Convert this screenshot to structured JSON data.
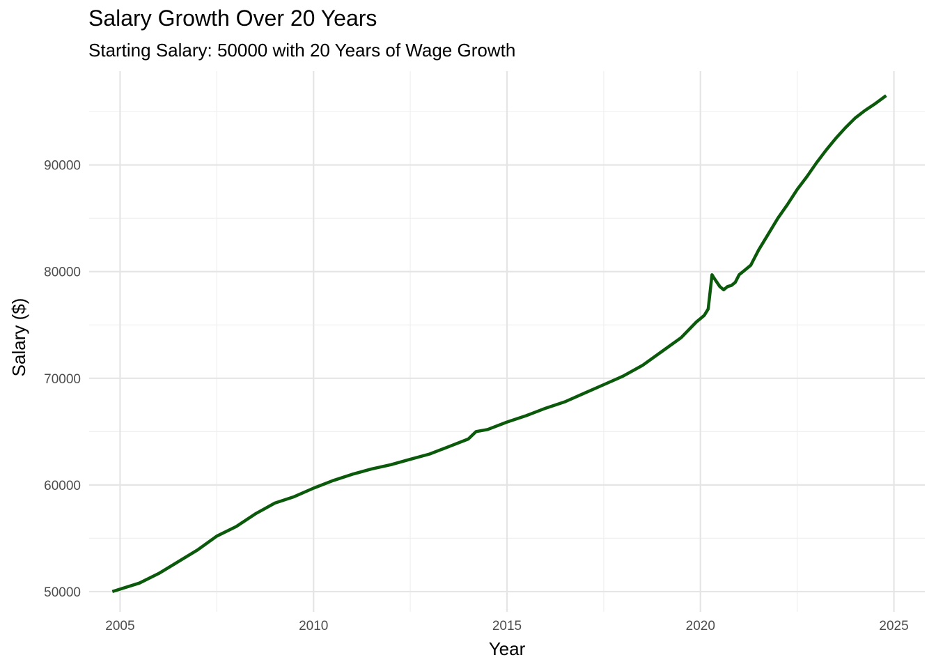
{
  "chart_data": {
    "type": "line",
    "title": "Salary Growth Over 20 Years",
    "subtitle": "Starting Salary: 50000 with 20 Years of Wage Growth",
    "xlabel": "Year",
    "ylabel": "Salary ($)",
    "x_ticks": [
      "2005",
      "2010",
      "2015",
      "2020",
      "2025"
    ],
    "y_ticks": [
      "50000",
      "60000",
      "70000",
      "80000",
      "90000"
    ],
    "xlim": [
      2004.2,
      2025.8
    ],
    "ylim": [
      48100,
      98800
    ],
    "grid": true,
    "line_color": "#0b5a0b",
    "series": [
      {
        "x": [
          2004.8,
          2005.5,
          2006.0,
          2006.5,
          2007.0,
          2007.5,
          2008.0,
          2008.5,
          2009.0,
          2009.5,
          2010.0,
          2010.5,
          2011.0,
          2011.5,
          2012.0,
          2012.5,
          2013.0,
          2013.5,
          2014.0,
          2014.2,
          2014.5,
          2015.0,
          2015.5,
          2016.0,
          2016.5,
          2017.0,
          2017.5,
          2018.0,
          2018.5,
          2019.0,
          2019.5,
          2019.9,
          2020.0,
          2020.1,
          2020.2,
          2020.3,
          2020.35,
          2020.5,
          2020.6,
          2020.7,
          2020.8,
          2020.9,
          2021.0,
          2021.1,
          2021.3,
          2021.5,
          2021.75,
          2022.0,
          2022.25,
          2022.5,
          2022.75,
          2023.0,
          2023.25,
          2023.5,
          2023.75,
          2024.0,
          2024.25,
          2024.5,
          2024.8
        ],
        "y": [
          50000,
          50800,
          51700,
          52800,
          53900,
          55200,
          56100,
          57300,
          58300,
          58900,
          59700,
          60400,
          61000,
          61500,
          61900,
          62400,
          62900,
          63600,
          64300,
          65000,
          65200,
          65900,
          66500,
          67200,
          67800,
          68600,
          69400,
          70200,
          71200,
          72500,
          73800,
          75300,
          75600,
          75900,
          76500,
          79700,
          79400,
          78600,
          78300,
          78600,
          78700,
          79000,
          79700,
          80000,
          80600,
          82000,
          83500,
          85000,
          86300,
          87700,
          88900,
          90200,
          91400,
          92500,
          93500,
          94400,
          95100,
          95700,
          96500
        ]
      }
    ]
  }
}
